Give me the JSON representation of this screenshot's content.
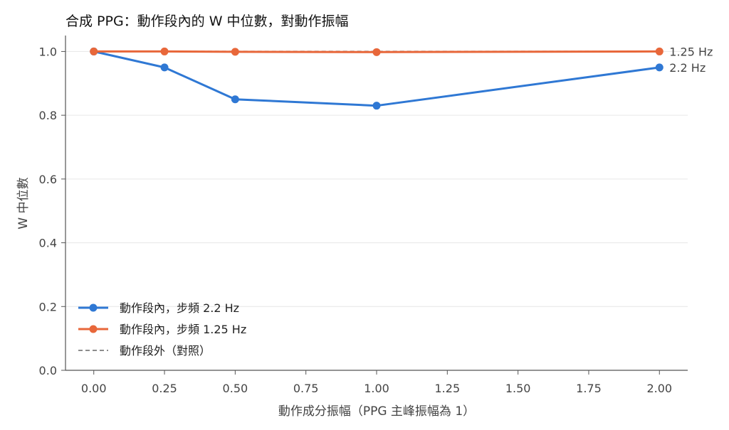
{
  "chart_data": {
    "type": "line",
    "title": "合成 PPG：動作段內的 W 中位數，對動作振幅",
    "xlabel": "動作成分振幅（PPG 主峰振幅為 1）",
    "ylabel": "W 中位數",
    "xlim": [
      -0.1,
      2.1
    ],
    "ylim": [
      0.0,
      1.05
    ],
    "x_ticks": [
      "0.00",
      "0.25",
      "0.50",
      "0.75",
      "1.00",
      "1.25",
      "1.50",
      "1.75",
      "2.00"
    ],
    "y_ticks": [
      "0.0",
      "0.2",
      "0.4",
      "0.6",
      "0.8",
      "1.0"
    ],
    "grid": "horizontal",
    "legend_position": "lower-left",
    "series": [
      {
        "name": "動作段內，步頻 2.2 Hz",
        "end_label": "2.2 Hz",
        "color": "#2f78d4",
        "style": "solid-marker",
        "x": [
          0.0,
          0.25,
          0.5,
          1.0,
          2.0
        ],
        "y": [
          1.0,
          0.95,
          0.85,
          0.83,
          0.95
        ]
      },
      {
        "name": "動作段內，步頻 1.25 Hz",
        "end_label": "1.25 Hz",
        "color": "#e8673a",
        "style": "solid-marker",
        "x": [
          0.0,
          0.25,
          0.5,
          1.0,
          2.0
        ],
        "y": [
          1.0,
          1.0,
          0.999,
          0.998,
          1.0
        ]
      },
      {
        "name": "動作段外（對照）",
        "color": "#8c8c8c",
        "style": "dashed",
        "x": [
          0.0,
          0.25,
          0.5,
          1.0,
          2.0
        ],
        "y": [
          1.0,
          1.0,
          1.0,
          1.0,
          1.0
        ]
      }
    ]
  }
}
